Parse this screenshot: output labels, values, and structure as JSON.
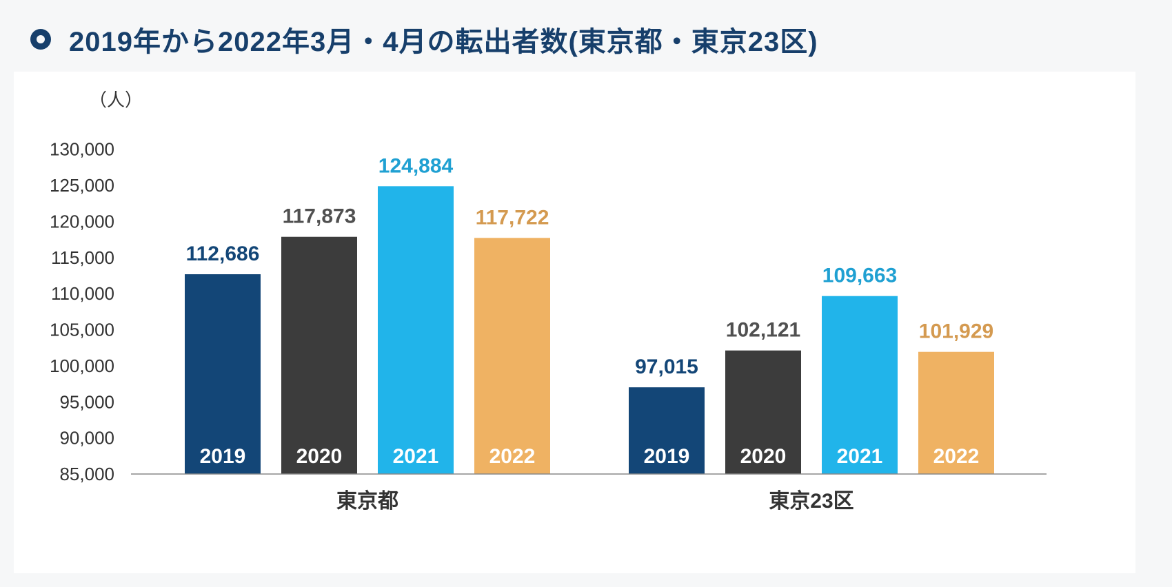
{
  "header": {
    "title": "2019年から2022年3月・4月の転出者数(東京都・東京23区)",
    "bullet_icon": "circle-bullet-icon"
  },
  "chart_data": {
    "type": "bar",
    "unit_label": "（人）",
    "categories": [
      "東京都",
      "東京23区"
    ],
    "series": [
      {
        "name": "2019",
        "values": [
          112686,
          97015
        ],
        "color": "#134677",
        "value_label_color": "#134677"
      },
      {
        "name": "2020",
        "values": [
          117873,
          102121
        ],
        "color": "#3c3c3c",
        "value_label_color": "#505050"
      },
      {
        "name": "2021",
        "values": [
          124884,
          109663
        ],
        "color": "#21b4ea",
        "value_label_color": "#1fa0d2"
      },
      {
        "name": "2022",
        "values": [
          117722,
          101929
        ],
        "color": "#efb263",
        "value_label_color": "#d49a50"
      }
    ],
    "value_labels": [
      [
        "112,686",
        "97,015"
      ],
      [
        "117,873",
        "102,121"
      ],
      [
        "124,884",
        "109,663"
      ],
      [
        "117,722",
        "101,929"
      ]
    ],
    "yticks": [
      85000,
      90000,
      95000,
      100000,
      105000,
      110000,
      115000,
      120000,
      125000,
      130000
    ],
    "ytick_labels": [
      "85,000",
      "90,000",
      "95,000",
      "100,000",
      "105,000",
      "110,000",
      "115,000",
      "120,000",
      "125,000",
      "130,000"
    ],
    "ylim": [
      85000,
      131500
    ],
    "grid": false,
    "legend": "none"
  }
}
